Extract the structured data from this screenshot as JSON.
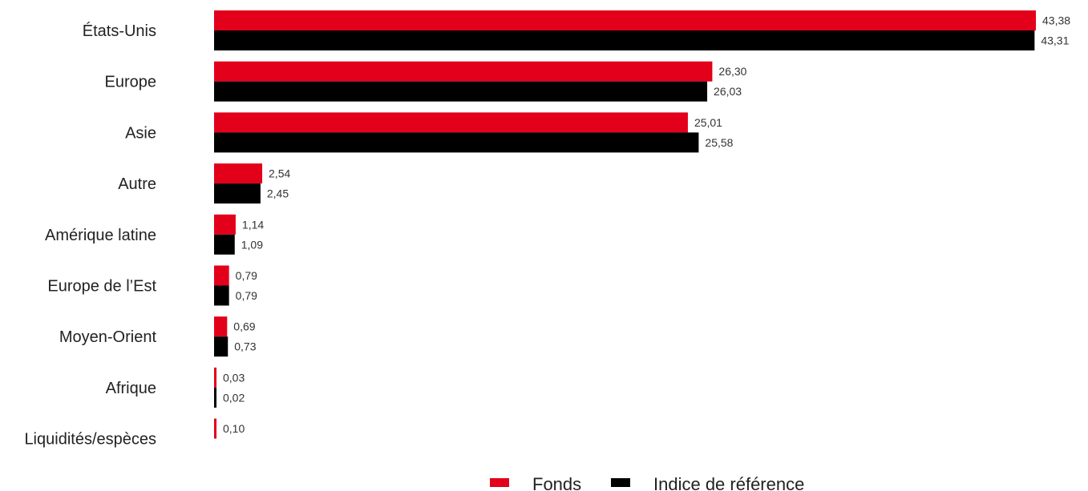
{
  "chart_data": {
    "type": "bar",
    "orientation": "horizontal",
    "categories": [
      "États-Unis",
      "Europe",
      "Asie",
      "Autre",
      "Amérique latine",
      "Europe de l’Est",
      "Moyen-Orient",
      "Afrique",
      "Liquidités/espèces"
    ],
    "series": [
      {
        "name": "Fonds",
        "color": "#e2001a",
        "values": [
          43.38,
          26.3,
          25.01,
          2.54,
          1.14,
          0.79,
          0.69,
          0.03,
          0.1
        ],
        "labels": [
          "43,38",
          "26,30",
          "25,01",
          "2,54",
          "1,14",
          "0,79",
          "0,69",
          "0,03",
          "0,10"
        ]
      },
      {
        "name": "Indice de référence",
        "color": "#000000",
        "values": [
          43.31,
          26.03,
          25.58,
          2.45,
          1.09,
          0.79,
          0.73,
          0.02,
          null
        ],
        "labels": [
          "43,31",
          "26,03",
          "25,58",
          "2,45",
          "1,09",
          "0,79",
          "0,73",
          "0,02",
          ""
        ]
      }
    ],
    "xlim": [
      0,
      43.38
    ],
    "grid": false,
    "legend_position": "bottom-center"
  }
}
